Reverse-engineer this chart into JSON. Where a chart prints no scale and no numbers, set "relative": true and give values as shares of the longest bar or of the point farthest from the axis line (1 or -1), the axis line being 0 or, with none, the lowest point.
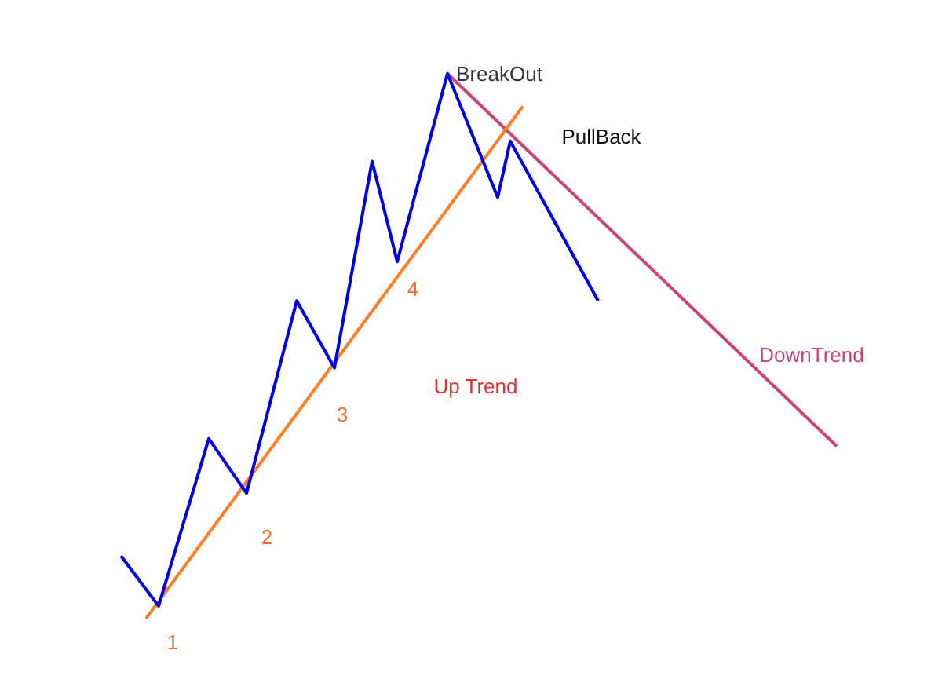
{
  "chart_data": {
    "type": "line",
    "relative": true,
    "legend": false,
    "marker": "none",
    "line_style": "solid",
    "categories": [
      null,
      null,
      null,
      null,
      null,
      null,
      null,
      null,
      null,
      null,
      null,
      null,
      null,
      null,
      null,
      null,
      null,
      null,
      null,
      null,
      null,
      null,
      null,
      null,
      null,
      null,
      null,
      null,
      null,
      null,
      null,
      null,
      null,
      null,
      null,
      null,
      null,
      null,
      null,
      null,
      null,
      null,
      null,
      null,
      null,
      null,
      null,
      null,
      null,
      null,
      null,
      null,
      null,
      null,
      null,
      null,
      null,
      null
    ],
    "series": [
      {
        "color": "#0000ee",
        "values": [
          0.115,
          null,
          null,
          0.023,
          null,
          null,
          null,
          0.33,
          null,
          null,
          0.23,
          null,
          null,
          null,
          0.583,
          null,
          null,
          0.46,
          null,
          null,
          0.839,
          null,
          0.655,
          null,
          null,
          null,
          1.0,
          null,
          null,
          null,
          0.773,
          0.876,
          null,
          null,
          null,
          null,
          null,
          null,
          0.583,
          null,
          null,
          null,
          null,
          null,
          null,
          null,
          null,
          null,
          null,
          null,
          null,
          null,
          null,
          null,
          null,
          null,
          null,
          null
        ]
      },
      {
        "color": "#ff7f27",
        "values": [
          null,
          null,
          0,
          null,
          null,
          null,
          null,
          null,
          null,
          null,
          null,
          null,
          null,
          null,
          null,
          null,
          null,
          null,
          null,
          null,
          null,
          null,
          null,
          null,
          null,
          null,
          null,
          null,
          null,
          null,
          null,
          null,
          0.94,
          null,
          null,
          null,
          null,
          null,
          null,
          null,
          null,
          null,
          null,
          null,
          null,
          null,
          null,
          null,
          null,
          null,
          null,
          null,
          null,
          null,
          null,
          null,
          null,
          null
        ]
      },
      {
        "color": "#cc4477",
        "values": [
          null,
          null,
          null,
          null,
          null,
          null,
          null,
          null,
          null,
          null,
          null,
          null,
          null,
          null,
          null,
          null,
          null,
          null,
          null,
          null,
          null,
          null,
          null,
          null,
          null,
          null,
          1.0,
          null,
          null,
          null,
          null,
          null,
          null,
          null,
          null,
          null,
          null,
          null,
          null,
          null,
          null,
          null,
          null,
          null,
          null,
          null,
          null,
          null,
          null,
          null,
          null,
          null,
          null,
          null,
          null,
          null,
          null,
          0.316
        ]
      }
    ],
    "annotations": [
      "1",
      "2",
      "3",
      "4",
      "Up Trend",
      "BreakOut",
      "PullBack",
      "DownTrend"
    ]
  }
}
